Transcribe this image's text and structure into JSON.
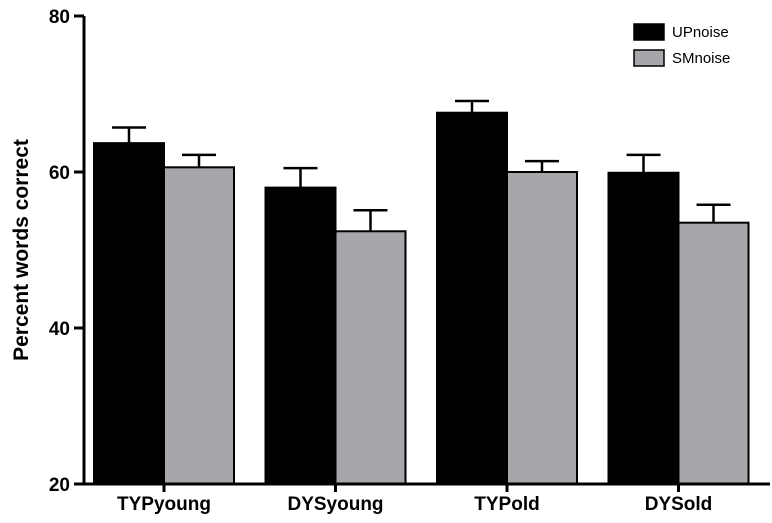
{
  "chart_data": {
    "type": "bar",
    "title": "",
    "xlabel": "",
    "ylabel": "Percent words correct",
    "ylim": [
      20,
      80
    ],
    "yticks": [
      "20",
      "40",
      "60",
      "80"
    ],
    "categories": [
      "TYPyoung",
      "DYSyoung",
      "TYPold",
      "DYSold"
    ],
    "series": [
      {
        "name": "UPnoise",
        "color": "#000000",
        "values": [
          63.7,
          58.0,
          67.6,
          59.9
        ],
        "errors": [
          2.0,
          2.5,
          1.5,
          2.3
        ]
      },
      {
        "name": "SMnoise",
        "color": "#a6a6ab",
        "values": [
          60.6,
          52.4,
          60.0,
          53.5
        ],
        "errors": [
          1.6,
          2.7,
          1.4,
          2.3
        ]
      }
    ],
    "legend_position": "top-right",
    "grid": false
  }
}
